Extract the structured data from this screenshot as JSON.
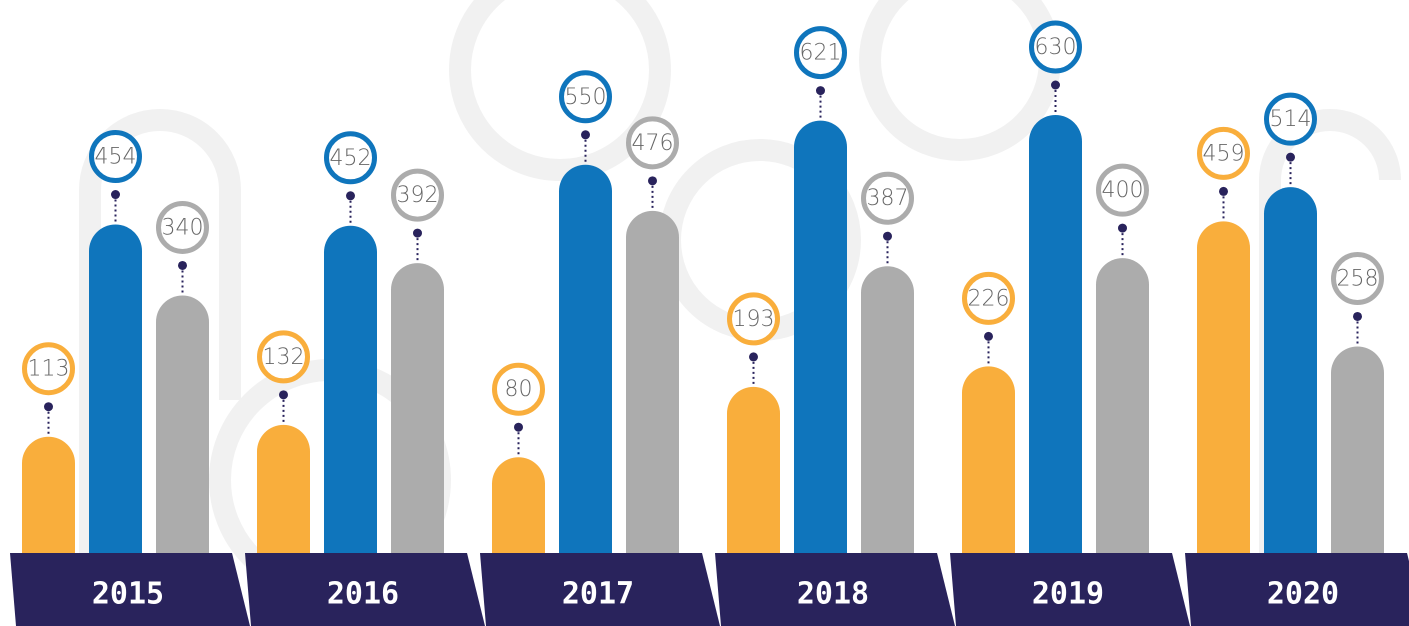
{
  "chart_data": {
    "type": "bar",
    "categories": [
      "2015",
      "2016",
      "2017",
      "2018",
      "2019",
      "2020"
    ],
    "series": [
      {
        "color": "#f9ae3c",
        "values": [
          113,
          132,
          80,
          193,
          226,
          459
        ]
      },
      {
        "color": "#0f75bc",
        "values": [
          454,
          452,
          550,
          621,
          630,
          514
        ]
      },
      {
        "color": "#acacac",
        "values": [
          340,
          392,
          476,
          387,
          400,
          258
        ]
      }
    ],
    "label_color": "#29235c"
  }
}
